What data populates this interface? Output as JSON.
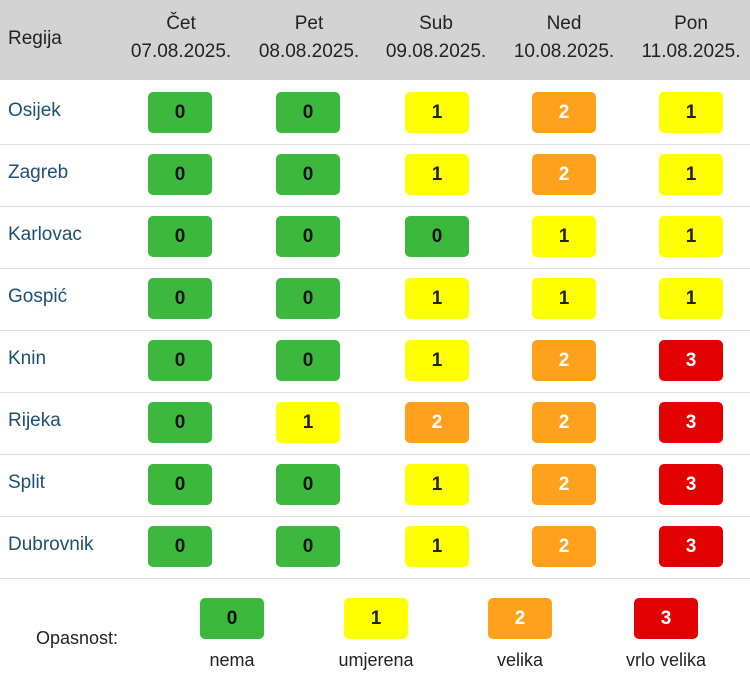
{
  "header": {
    "region_label": "Regija",
    "days": [
      {
        "name": "Čet",
        "date": "07.08.2025."
      },
      {
        "name": "Pet",
        "date": "08.08.2025."
      },
      {
        "name": "Sub",
        "date": "09.08.2025."
      },
      {
        "name": "Ned",
        "date": "10.08.2025."
      },
      {
        "name": "Pon",
        "date": "11.08.2025."
      }
    ]
  },
  "rows": [
    {
      "region": "Osijek",
      "levels": [
        "0",
        "0",
        "1",
        "2",
        "1"
      ]
    },
    {
      "region": "Zagreb",
      "levels": [
        "0",
        "0",
        "1",
        "2",
        "1"
      ]
    },
    {
      "region": "Karlovac",
      "levels": [
        "0",
        "0",
        "0",
        "1",
        "1"
      ]
    },
    {
      "region": "Gospić",
      "levels": [
        "0",
        "0",
        "1",
        "1",
        "1"
      ]
    },
    {
      "region": "Knin",
      "levels": [
        "0",
        "0",
        "1",
        "2",
        "3"
      ]
    },
    {
      "region": "Rijeka",
      "levels": [
        "0",
        "1",
        "2",
        "2",
        "3"
      ]
    },
    {
      "region": "Split",
      "levels": [
        "0",
        "0",
        "1",
        "2",
        "3"
      ]
    },
    {
      "region": "Dubrovnik",
      "levels": [
        "0",
        "0",
        "1",
        "2",
        "3"
      ]
    }
  ],
  "legend": {
    "label": "Opasnost:",
    "items": [
      {
        "level": "0",
        "text": "nema"
      },
      {
        "level": "1",
        "text": "umjerena"
      },
      {
        "level": "2",
        "text": "velika"
      },
      {
        "level": "3",
        "text": "vrlo velika"
      }
    ]
  },
  "colors": {
    "level_0": "#3cb93c",
    "level_1": "#ffff00",
    "level_2": "#ffa11a",
    "level_3": "#e30000",
    "header_bg": "#d3d3d3",
    "region_text": "#1d4f73"
  }
}
